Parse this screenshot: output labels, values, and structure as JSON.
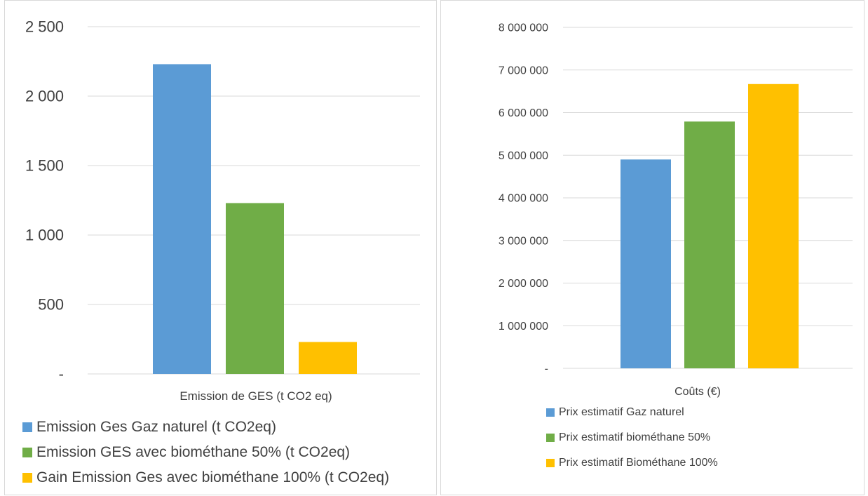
{
  "chart_data": [
    {
      "type": "bar",
      "xlabel": "",
      "categories": [
        "Emission de GES (t CO2 eq)"
      ],
      "series": [
        {
          "name": "Emission Ges Gaz naturel (t CO2eq)",
          "values": [
            2230
          ],
          "color": "#5b9bd5"
        },
        {
          "name": "Emission GES avec biométhane 50% (t CO2eq)",
          "values": [
            1230
          ],
          "color": "#70ad47"
        },
        {
          "name": "Gain Emission Ges avec biométhane 100% (t CO2eq)",
          "values": [
            230
          ],
          "color": "#ffc000"
        }
      ],
      "ylim": [
        0,
        2500
      ],
      "yticks": [
        0,
        500,
        1000,
        1500,
        2000,
        2500
      ],
      "ytick_labels": [
        "-",
        "500",
        "1 000",
        "1 500",
        "2 000",
        "2 500"
      ],
      "grid": true,
      "legend_position": "bottom"
    },
    {
      "type": "bar",
      "xlabel": "",
      "categories": [
        "Coûts (€)"
      ],
      "series": [
        {
          "name": "Prix estimatif Gaz naturel",
          "values": [
            4900000
          ],
          "color": "#5b9bd5"
        },
        {
          "name": "Prix estimatif biométhane 50%",
          "values": [
            5790000
          ],
          "color": "#70ad47"
        },
        {
          "name": "Prix estimatif Biométhane 100%",
          "values": [
            6670000
          ],
          "color": "#ffc000"
        }
      ],
      "ylim": [
        0,
        8000000
      ],
      "yticks": [
        0,
        1000000,
        2000000,
        3000000,
        4000000,
        5000000,
        6000000,
        7000000,
        8000000
      ],
      "ytick_labels": [
        "-",
        "1 000 000",
        "2 000 000",
        "3 000 000",
        "4 000 000",
        "5 000 000",
        "6 000 000",
        "7 000 000",
        "8 000 000"
      ],
      "grid": true,
      "legend_position": "bottom"
    }
  ]
}
